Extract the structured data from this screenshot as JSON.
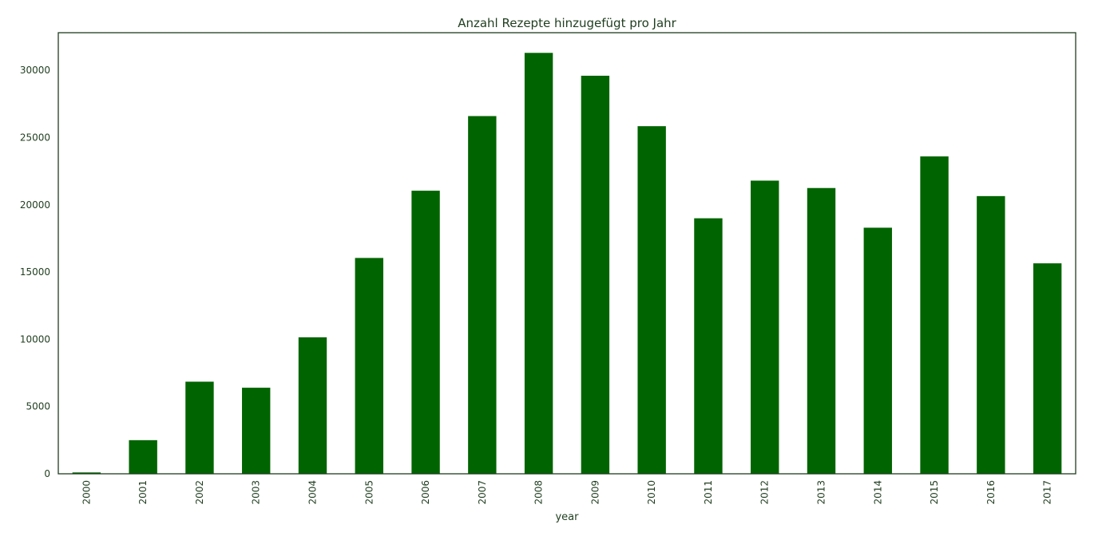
{
  "chart_data": {
    "type": "bar",
    "title": "Anzahl Rezepte hinzugefügt pro Jahr",
    "xlabel": "year",
    "ylabel": "",
    "categories": [
      "2000",
      "2001",
      "2002",
      "2003",
      "2004",
      "2005",
      "2006",
      "2007",
      "2008",
      "2009",
      "2010",
      "2011",
      "2012",
      "2013",
      "2014",
      "2015",
      "2016",
      "2017"
    ],
    "values": [
      100,
      2500,
      6850,
      6400,
      10150,
      16050,
      21050,
      26600,
      31300,
      29600,
      25850,
      19000,
      21800,
      21250,
      18300,
      23600,
      20650,
      15650
    ],
    "ylim": [
      0,
      32800
    ],
    "yticks": [
      0,
      5000,
      10000,
      15000,
      20000,
      25000,
      30000
    ],
    "grid": false,
    "legend": "none",
    "colors": {
      "bar": "#006400",
      "text": "#1f3d1f",
      "axis": "#1f3d1f"
    }
  }
}
